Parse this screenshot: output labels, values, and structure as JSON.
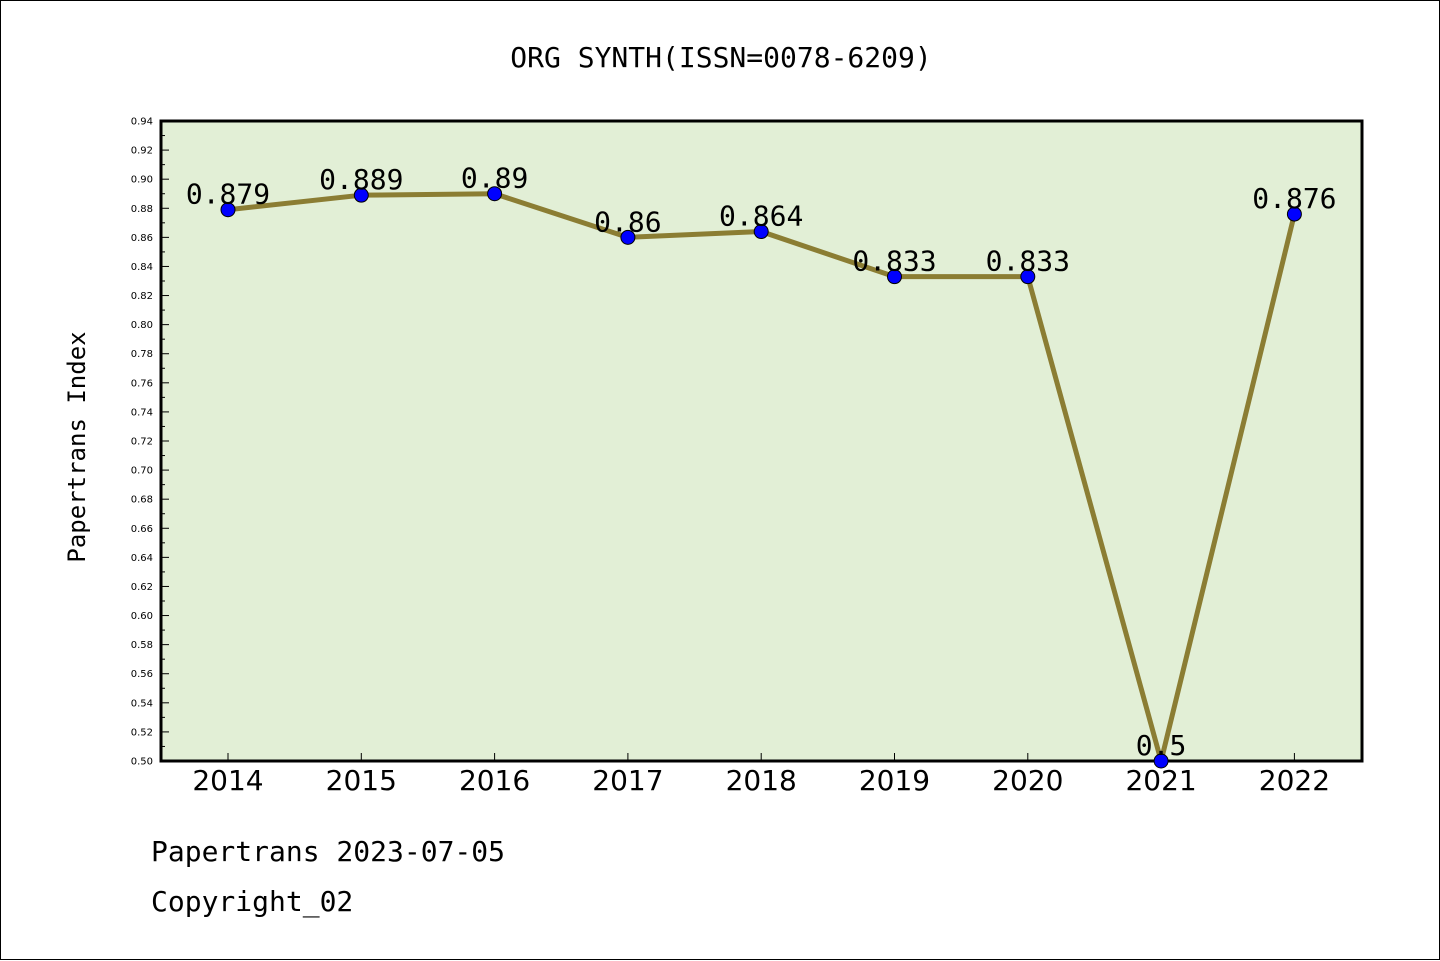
{
  "footer": {
    "line1": "Papertrans 2023-07-05",
    "line2": "Copyright_02"
  },
  "chart_data": {
    "type": "line",
    "title": "ORG SYNTH(ISSN=0078-6209)",
    "xlabel": "",
    "ylabel": "Papertrans Index",
    "categories": [
      "2014",
      "2015",
      "2016",
      "2017",
      "2018",
      "2019",
      "2020",
      "2021",
      "2022"
    ],
    "series": [
      {
        "values": [
          0.879,
          0.889,
          0.89,
          0.86,
          0.864,
          0.833,
          0.833,
          0.5,
          0.876
        ],
        "labels": [
          "0.879",
          "0.889",
          "0.89",
          "0.86",
          "0.864",
          "0.833",
          "0.833",
          "0.5",
          "0.876"
        ]
      }
    ],
    "ylim": [
      0.5,
      0.94
    ],
    "yticks": [
      "0.50",
      "0.52",
      "0.54",
      "0.56",
      "0.58",
      "0.60",
      "0.62",
      "0.64",
      "0.66",
      "0.68",
      "0.70",
      "0.72",
      "0.74",
      "0.76",
      "0.78",
      "0.80",
      "0.82",
      "0.84",
      "0.86",
      "0.88",
      "0.90",
      "0.92",
      "0.94"
    ],
    "grid": false,
    "colors": {
      "plot_background": "#e2efd6",
      "line": "#8b7d33",
      "marker": "#0000ff"
    }
  }
}
